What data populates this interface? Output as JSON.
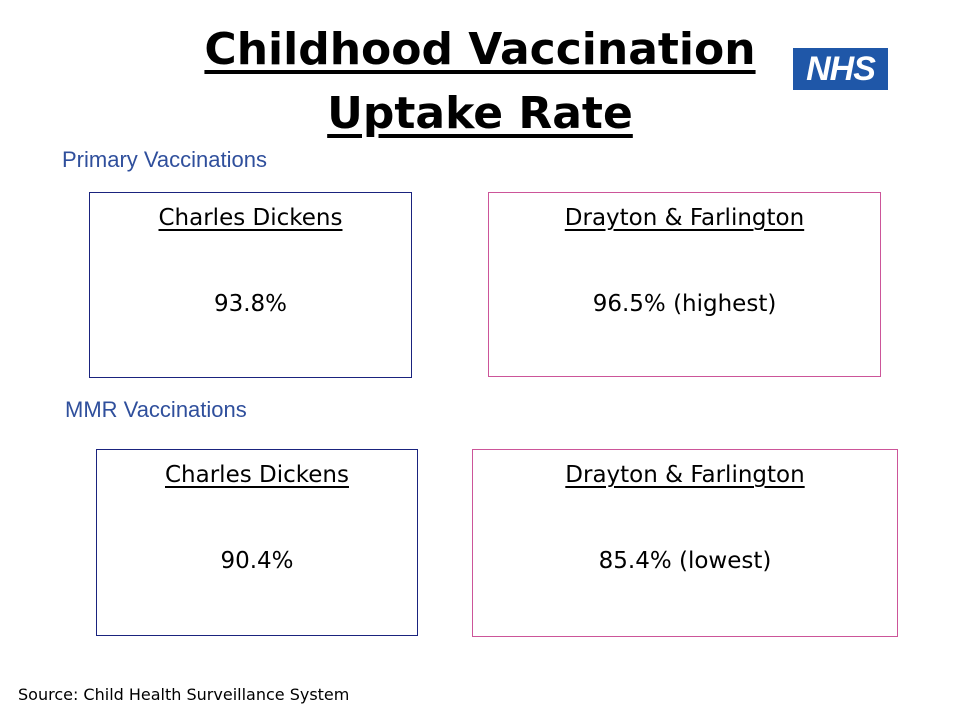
{
  "title": {
    "line1": "Childhood Vaccination",
    "line2": "Uptake Rate"
  },
  "logo": {
    "text": "NHS",
    "color": "#1f57a8"
  },
  "sections": [
    {
      "label": "Primary Vaccinations",
      "cards": [
        {
          "name": "Charles Dickens",
          "value": "93.8%"
        },
        {
          "name": "Drayton & Farlington",
          "value": "96.5% (highest)"
        }
      ]
    },
    {
      "label": "MMR Vaccinations",
      "cards": [
        {
          "name": "Charles Dickens",
          "value": "90.4%"
        },
        {
          "name": "Drayton & Farlington",
          "value": "85.4% (lowest)"
        }
      ]
    }
  ],
  "source": "Source: Child Health Surveillance System"
}
